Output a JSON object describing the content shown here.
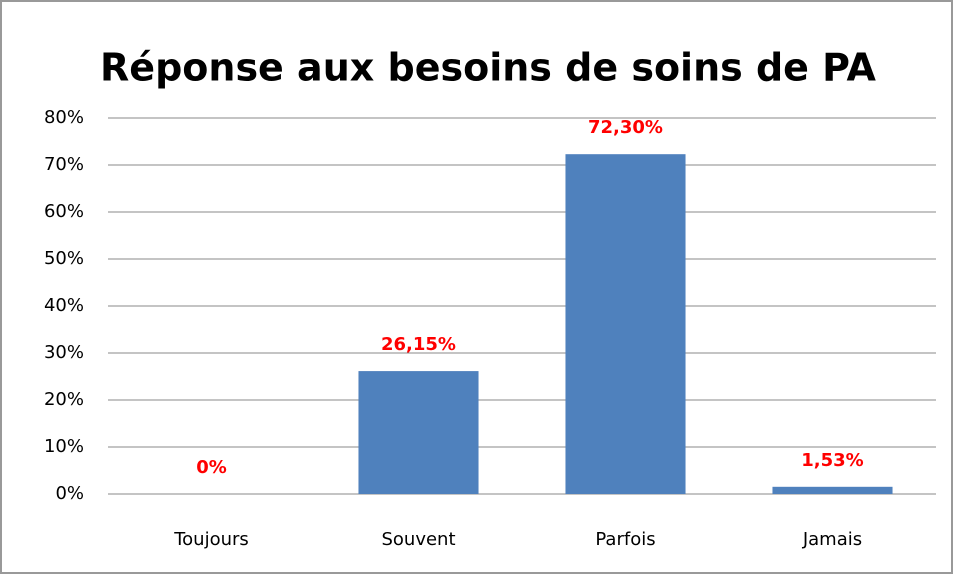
{
  "chart_data": {
    "type": "bar",
    "title": "Réponse aux besoins de soins de PA",
    "categories": [
      "Toujours",
      "Souvent",
      "Parfois",
      "Jamais"
    ],
    "values": [
      0,
      26.15,
      72.3,
      1.53
    ],
    "value_labels": [
      "0%",
      "26,15%",
      "72,30%",
      "1,53%"
    ],
    "color": "#4f81bd",
    "ylim": [
      0,
      80
    ],
    "yticks": [
      {
        "value": 0,
        "label": "0%"
      },
      {
        "value": 10,
        "label": "10%"
      },
      {
        "value": 20,
        "label": "20%"
      },
      {
        "value": 30,
        "label": "30%"
      },
      {
        "value": 40,
        "label": "40%"
      },
      {
        "value": 50,
        "label": "50%"
      },
      {
        "value": 60,
        "label": "60%"
      },
      {
        "value": 70,
        "label": "70%"
      },
      {
        "value": 80,
        "label": "80%"
      }
    ],
    "grid": true
  }
}
